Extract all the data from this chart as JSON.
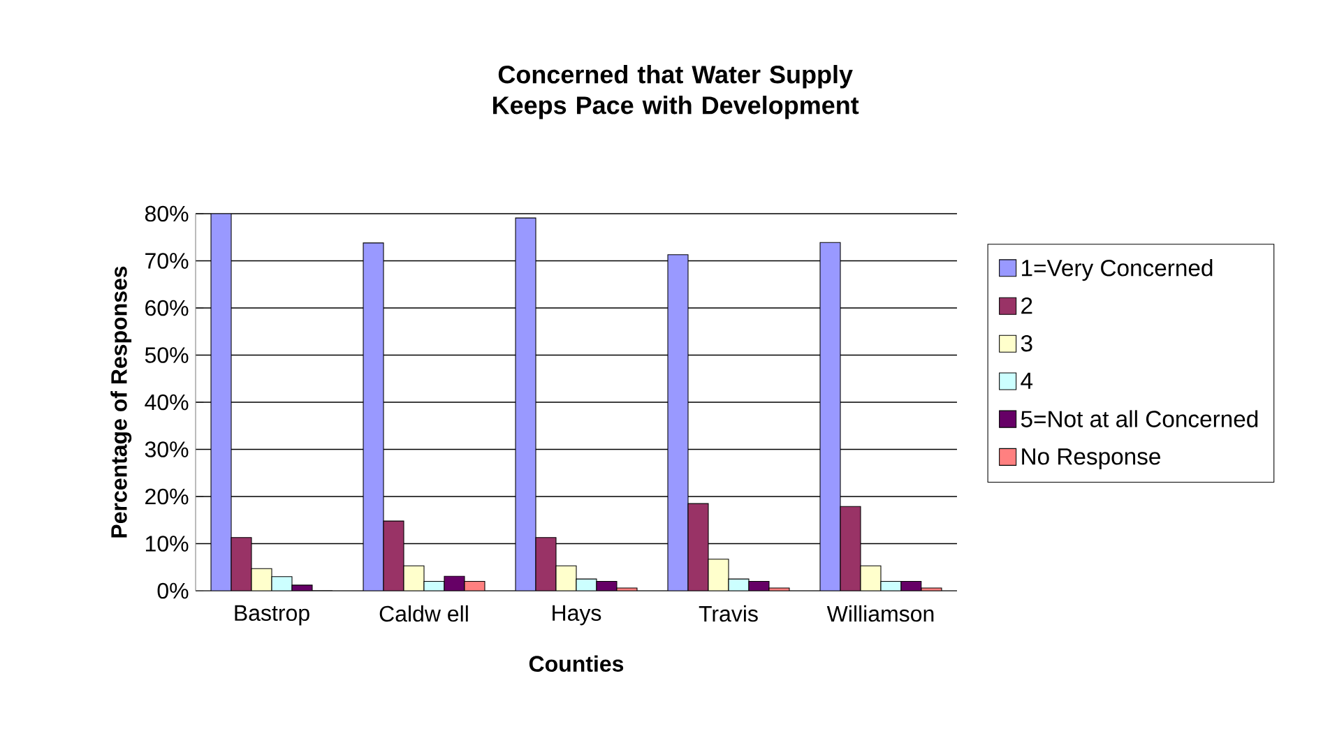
{
  "chart_data": {
    "type": "bar",
    "title": "Concerned that Water Supply Keeps Pace with Development",
    "xlabel": "Counties",
    "ylabel": "Percentage of Responses",
    "categories": [
      "Bastrop",
      "Caldw ell",
      "Hays",
      "Travis",
      "Williamson"
    ],
    "series": [
      {
        "name": "1=Very Concerned",
        "color": "#9999ff",
        "values": [
          80,
          73.8,
          79.1,
          71.3,
          73.9
        ]
      },
      {
        "name": "2",
        "color": "#993366",
        "values": [
          11.3,
          14.8,
          11.3,
          18.5,
          17.9
        ]
      },
      {
        "name": "3",
        "color": "#ffffcc",
        "values": [
          4.7,
          5.3,
          5.3,
          6.7,
          5.3
        ]
      },
      {
        "name": "4",
        "color": "#ccffff",
        "values": [
          3.0,
          2.0,
          2.5,
          2.5,
          2.0
        ]
      },
      {
        "name": "5=Not at all Concerned",
        "color": "#660066",
        "values": [
          1.2,
          3.1,
          2.0,
          2.0,
          2.0
        ]
      },
      {
        "name": "No Response",
        "color": "#ff8080",
        "values": [
          0,
          2.0,
          0.6,
          0.6,
          0.6
        ]
      }
    ],
    "ylim": [
      0,
      80
    ],
    "yticks": [
      {
        "value": 0,
        "label": "0%"
      },
      {
        "value": 10,
        "label": "10%"
      },
      {
        "value": 20,
        "label": "20%"
      },
      {
        "value": 30,
        "label": "30%"
      },
      {
        "value": 40,
        "label": "40%"
      },
      {
        "value": 50,
        "label": "50%"
      },
      {
        "value": 60,
        "label": "60%"
      },
      {
        "value": 70,
        "label": "70%"
      },
      {
        "value": 80,
        "label": "80%"
      }
    ],
    "grid": "y",
    "legend": "right"
  }
}
